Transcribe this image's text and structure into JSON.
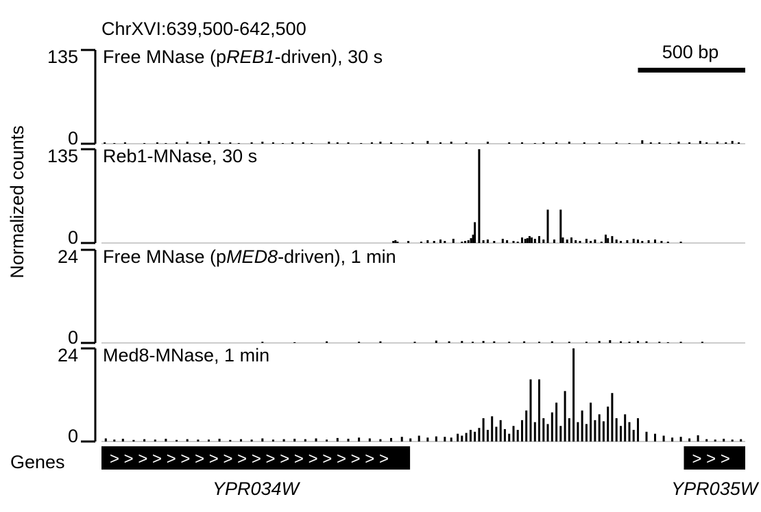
{
  "region_label": "ChrXVI:639,500-642,500",
  "scale_bar": {
    "label": "500 bp",
    "length_bp": 500
  },
  "ylabel": "Normalized counts",
  "colors": {
    "signal": "#000000",
    "baseline": "#999999",
    "gene_box": "#000000",
    "gene_text": "#ffffff"
  },
  "chart_data": {
    "type": "bar",
    "region": {
      "chromosome": "ChrXVI",
      "start": 639500,
      "end": 642500
    },
    "xlabel": "",
    "ylabel": "Normalized counts",
    "tracks": [
      {
        "name": "Free MNase (pREB1-driven), 30 s",
        "name_parts": [
          {
            "text": "Free MNase (p",
            "italic": false
          },
          {
            "text": "REB1",
            "italic": true
          },
          {
            "text": "-driven), 30 s",
            "italic": false
          }
        ],
        "ylim": [
          0,
          135
        ],
        "ytick_top": "135",
        "ytick_bottom": "0",
        "x": [
          639515,
          639560,
          639610,
          639700,
          639760,
          639800,
          639850,
          639900,
          639960,
          640000,
          640050,
          640100,
          640140,
          640200,
          640250,
          640300,
          640345,
          640390,
          640440,
          640480,
          640560,
          640600,
          640650,
          640710,
          640760,
          640800,
          640850,
          640900,
          640950,
          641020,
          641080,
          641130,
          641200,
          641300,
          641400,
          641460,
          641520,
          641560,
          641620,
          641680,
          641750,
          641820,
          641900,
          641960,
          642020,
          642060,
          642100,
          642150,
          642190,
          642240,
          642290,
          642320,
          642370,
          642410,
          642440,
          642470
        ],
        "values": [
          2,
          1,
          2,
          1,
          2,
          1,
          2,
          3,
          2,
          4,
          2,
          2,
          1,
          2,
          3,
          2,
          1,
          2,
          2,
          1,
          3,
          2,
          2,
          1,
          2,
          3,
          2,
          1,
          2,
          4,
          2,
          3,
          2,
          3,
          2,
          2,
          1,
          2,
          2,
          3,
          2,
          2,
          2,
          1,
          5,
          2,
          2,
          1,
          3,
          2,
          4,
          2,
          3,
          2,
          4,
          2
        ]
      },
      {
        "name": "Reb1-MNase, 30 s",
        "name_parts": [
          {
            "text": "Reb1-MNase, 30 s",
            "italic": false
          }
        ],
        "ylim": [
          0,
          135
        ],
        "ytick_top": "135",
        "ytick_bottom": "0",
        "x": [
          640860,
          640870,
          640880,
          640930,
          640990,
          641020,
          641050,
          641080,
          641100,
          641140,
          641180,
          641195,
          641210,
          641222,
          641232,
          641240,
          641260,
          641280,
          641300,
          641330,
          641370,
          641390,
          641420,
          641440,
          641460,
          641475,
          641485,
          641495,
          641505,
          641520,
          641540,
          641560,
          641580,
          641610,
          641640,
          641650,
          641670,
          641690,
          641710,
          641730,
          641760,
          641780,
          641800,
          641830,
          641850,
          641860,
          641880,
          641900,
          641920,
          641950,
          641980,
          642000,
          642020,
          642050,
          642080,
          642110,
          642140,
          642200
        ],
        "values": [
          3,
          4,
          2,
          3,
          2,
          4,
          3,
          5,
          3,
          6,
          2,
          3,
          4,
          7,
          12,
          30,
          135,
          4,
          5,
          3,
          6,
          4,
          3,
          2,
          8,
          6,
          7,
          10,
          8,
          6,
          10,
          5,
          48,
          5,
          48,
          8,
          5,
          8,
          4,
          3,
          6,
          3,
          5,
          2,
          12,
          7,
          10,
          5,
          3,
          4,
          6,
          5,
          3,
          4,
          5,
          3,
          2,
          2
        ]
      },
      {
        "name": "Free MNase (pMED8-driven), 1 min",
        "name_parts": [
          {
            "text": "Free MNase (p",
            "italic": false
          },
          {
            "text": "MED8",
            "italic": true
          },
          {
            "text": "-driven), 1 min",
            "italic": false
          }
        ],
        "ylim": [
          0,
          24
        ],
        "ytick_top": "24",
        "ytick_bottom": "0",
        "x": [
          640250,
          640400,
          640550,
          640700,
          640800,
          640960,
          641060,
          641120,
          641180,
          641230,
          641280,
          641330,
          641400,
          641470,
          641540,
          641600,
          641680,
          641760,
          641820,
          641870,
          641920,
          641960,
          642000,
          642040,
          642100,
          642140,
          642200,
          642300
        ],
        "values": [
          0.3,
          0.2,
          0.4,
          0.3,
          0.4,
          0.3,
          0.6,
          0.4,
          0.5,
          0.3,
          0.5,
          0.4,
          0.3,
          0.4,
          0.3,
          0.4,
          0.3,
          0.3,
          0.5,
          0.7,
          0.4,
          0.3,
          0.5,
          0.4,
          0.3,
          0.2,
          0.3,
          0.3
        ]
      },
      {
        "name": "Med8-MNase, 1 min",
        "name_parts": [
          {
            "text": "Med8-MNase, 1 min",
            "italic": false
          }
        ],
        "ylim": [
          0,
          24
        ],
        "ytick_top": "24",
        "ytick_bottom": "0",
        "x": [
          639520,
          639560,
          639600,
          639650,
          639700,
          639750,
          639800,
          639850,
          639900,
          639950,
          640000,
          640050,
          640100,
          640150,
          640200,
          640250,
          640300,
          640350,
          640400,
          640450,
          640500,
          640550,
          640600,
          640650,
          640700,
          640750,
          640800,
          640850,
          640900,
          640940,
          640980,
          641020,
          641060,
          641100,
          641130,
          641160,
          641180,
          641200,
          641220,
          641240,
          641260,
          641280,
          641300,
          641320,
          641340,
          641360,
          641380,
          641400,
          641420,
          641440,
          641460,
          641480,
          641500,
          641520,
          641540,
          641560,
          641580,
          641600,
          641620,
          641640,
          641660,
          641680,
          641700,
          641720,
          641740,
          641760,
          641780,
          641800,
          641820,
          641840,
          641860,
          641880,
          641900,
          641920,
          641940,
          641960,
          641980,
          642000,
          642040,
          642080,
          642120,
          642160,
          642200,
          642240,
          642280,
          642320,
          642360,
          642400,
          642440,
          642480
        ],
        "values": [
          0.8,
          0.5,
          0.7,
          0.4,
          0.6,
          0.5,
          0.7,
          0.4,
          0.6,
          0.5,
          0.5,
          0.7,
          0.4,
          0.6,
          0.5,
          0.8,
          0.5,
          0.6,
          0.7,
          0.6,
          0.8,
          0.5,
          0.9,
          0.7,
          1.0,
          0.8,
          0.6,
          0.9,
          1.2,
          0.8,
          1.5,
          1.0,
          1.3,
          1.2,
          1.0,
          2.0,
          1.5,
          2.2,
          3.0,
          2.5,
          3.5,
          6.0,
          3.0,
          6.5,
          3.8,
          5.5,
          3.2,
          2.0,
          4.0,
          3.0,
          5.5,
          8.0,
          16.0,
          5.0,
          16.0,
          6.0,
          4.5,
          7.5,
          10.0,
          4.0,
          13.0,
          6.0,
          24.0,
          5.0,
          8.0,
          4.5,
          10.0,
          5.5,
          7.0,
          5.2,
          9.0,
          12.5,
          6.0,
          4.0,
          7.0,
          5.0,
          3.0,
          6.0,
          2.5,
          2.0,
          1.5,
          1.0,
          1.2,
          0.8,
          1.6,
          0.6,
          0.5,
          0.7,
          0.5,
          0.6
        ]
      }
    ],
    "genes": {
      "row_label": "Genes",
      "items": [
        {
          "name": "YPR034W",
          "start": 639500,
          "end": 640938,
          "strand": ">",
          "strand_glyphs": "> > > > > > > > > > > > > > > > > > > >"
        },
        {
          "name": "YPR035W",
          "start": 642214,
          "end": 642500,
          "strand": ">",
          "strand_glyphs": "> > >"
        }
      ]
    }
  }
}
